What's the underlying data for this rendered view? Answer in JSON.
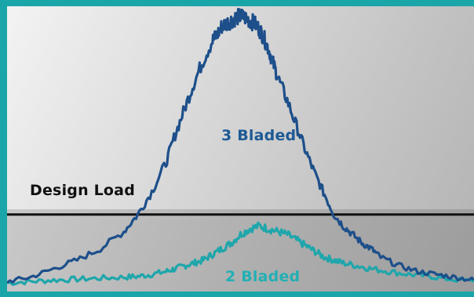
{
  "chart_data": {
    "type": "line",
    "title": "",
    "xlabel": "",
    "ylabel": "",
    "xlim": [
      0,
      100
    ],
    "ylim": [
      0,
      100
    ],
    "grid": false,
    "axes_visible": false,
    "design_load": {
      "label": "Design Load",
      "value": 27,
      "color": "#111111"
    },
    "series": [
      {
        "name": "3 Bladed",
        "color": "#1d4f8a",
        "label_color": "#1d5a95",
        "x": [
          0,
          5,
          10,
          15,
          20,
          25,
          28,
          31,
          34,
          36,
          38,
          40,
          42,
          44,
          45,
          46,
          47,
          48,
          49,
          50,
          51,
          52,
          53,
          54,
          55,
          56,
          57,
          58,
          60,
          62,
          64,
          66,
          68,
          70,
          72,
          74,
          76,
          78,
          80,
          84,
          88,
          92,
          96,
          100
        ],
        "values": [
          3.5,
          5,
          8,
          11,
          15,
          21,
          27,
          35,
          45,
          55,
          64,
          73,
          81,
          88,
          90,
          93,
          94,
          95,
          96,
          96.5,
          96,
          95,
          94,
          92,
          89,
          85,
          80,
          75,
          67,
          58,
          49,
          41,
          34,
          27,
          23,
          20,
          17,
          15,
          12,
          9,
          7,
          6,
          5,
          4
        ]
      },
      {
        "name": "2 Bladed",
        "color": "#1ea6ab",
        "label_color": "#22b0b4",
        "x": [
          0,
          5,
          10,
          15,
          20,
          25,
          28,
          31,
          34,
          36,
          38,
          40,
          42,
          44,
          46,
          48,
          50,
          52,
          54,
          56,
          58,
          60,
          62,
          64,
          66,
          68,
          70,
          72,
          75,
          78,
          82,
          86,
          90,
          94,
          100
        ],
        "values": [
          3,
          3.5,
          4,
          4.3,
          4.7,
          5,
          5.3,
          6,
          7,
          8,
          9,
          10,
          11,
          13,
          15,
          17,
          20,
          22,
          23,
          22,
          21,
          20,
          18,
          16,
          14,
          12,
          11,
          10,
          9,
          8,
          7,
          6,
          5.5,
          4.5,
          3.5
        ]
      }
    ]
  }
}
